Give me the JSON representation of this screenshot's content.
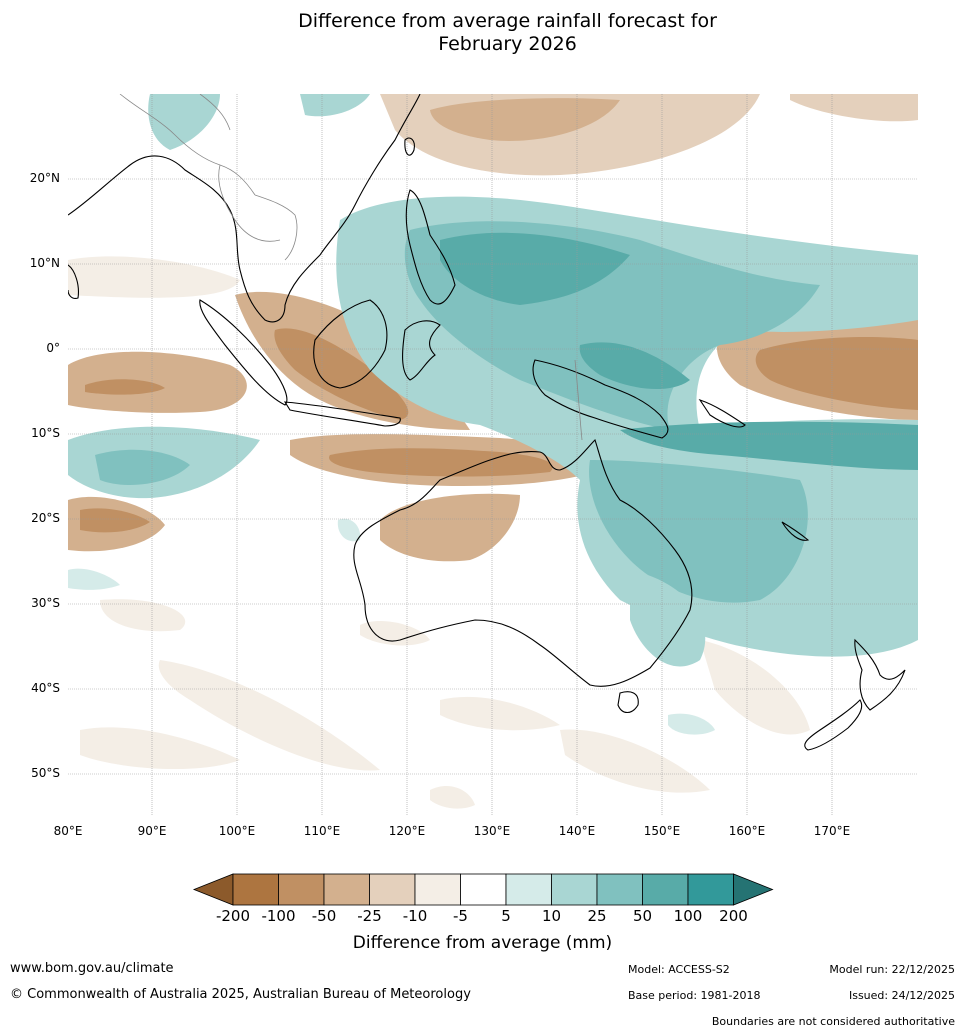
{
  "title_line1": "Difference from average rainfall forecast for",
  "title_line2": "February 2026",
  "lat_labels": [
    "20°N",
    "10°N",
    "0°",
    "10°S",
    "20°S",
    "30°S",
    "40°S",
    "50°S"
  ],
  "lon_labels": [
    "80°E",
    "90°E",
    "100°E",
    "110°E",
    "120°E",
    "130°E",
    "140°E",
    "150°E",
    "160°E",
    "170°E"
  ],
  "colorbar": {
    "ticks": [
      "-200",
      "-100",
      "-50",
      "-25",
      "-10",
      "-5",
      "5",
      "10",
      "25",
      "50",
      "100",
      "200"
    ],
    "colors": [
      "#8c5a2b",
      "#ad7540",
      "#c09063",
      "#d3b08e",
      "#e4d0bc",
      "#f4eee6",
      "#ffffff",
      "#d5ebe9",
      "#a9d6d3",
      "#80c1bf",
      "#58aba8",
      "#32999a",
      "#257373"
    ],
    "label": "Difference from average (mm)"
  },
  "footer": {
    "website": "www.bom.gov.au/climate",
    "copyright": "© Commonwealth of Australia 2025, Australian Bureau of Meteorology",
    "model": "Model: ACCESS-S2",
    "base_period": "Base period: 1981-2018",
    "model_run": "Model run: 22/12/2025",
    "issued": "Issued: 24/12/2025",
    "boundaries": "Boundaries are not considered authoritative"
  }
}
